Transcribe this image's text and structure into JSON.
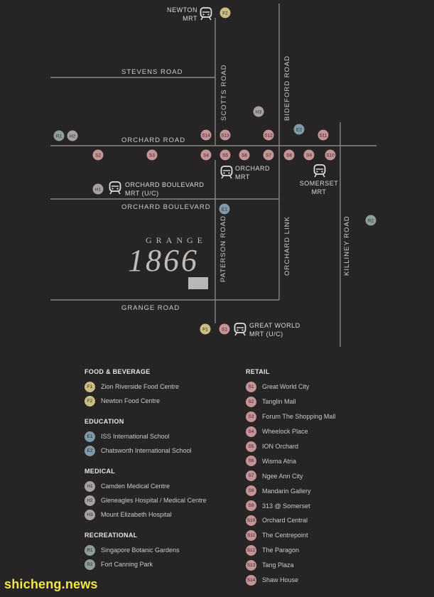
{
  "colors": {
    "background": "#262425",
    "road": "#8a8684",
    "food": "#c9bf84",
    "education": "#7f9aa8",
    "medical": "#a7a2a0",
    "recreational": "#8f9e97",
    "retail": "#c69496",
    "site": "#b9b7b6"
  },
  "map": {
    "roads": {
      "stevens": "STEVENS ROAD",
      "orchard": "ORCHARD ROAD",
      "orchard_boulevard": "ORCHARD BOULEVARD",
      "grange": "GRANGE ROAD",
      "scotts": "SCOTTS ROAD",
      "bideford": "BIDEFORD ROAD",
      "paterson": "PATERSON ROAD",
      "orchard_link": "ORCHARD LINK",
      "killiney": "KILLINEY ROAD"
    },
    "mrt": {
      "newton": [
        "NEWTON",
        "MRT"
      ],
      "orchard": [
        "ORCHARD",
        "MRT"
      ],
      "orchard_boulevard": [
        "ORCHARD BOULEVARD",
        "MRT (U/C)"
      ],
      "somerset": [
        "SOMERSET",
        "MRT"
      ],
      "great_world": [
        "GREAT WORLD",
        "MRT (U/C)"
      ]
    },
    "project": {
      "word": "GRANGE",
      "year": "1866"
    },
    "markers": [
      {
        "code": "F2",
        "cat": "food"
      },
      {
        "code": "H3",
        "cat": "medical"
      },
      {
        "code": "E2",
        "cat": "education"
      },
      {
        "code": "R1",
        "cat": "recreational"
      },
      {
        "code": "H2",
        "cat": "medical"
      },
      {
        "code": "S14",
        "cat": "retail"
      },
      {
        "code": "S13",
        "cat": "retail"
      },
      {
        "code": "S12",
        "cat": "retail"
      },
      {
        "code": "S11",
        "cat": "retail"
      },
      {
        "code": "S2",
        "cat": "retail"
      },
      {
        "code": "S3",
        "cat": "retail"
      },
      {
        "code": "S4",
        "cat": "retail"
      },
      {
        "code": "S5",
        "cat": "retail"
      },
      {
        "code": "S6",
        "cat": "retail"
      },
      {
        "code": "S7",
        "cat": "retail"
      },
      {
        "code": "S8",
        "cat": "retail"
      },
      {
        "code": "S9",
        "cat": "retail"
      },
      {
        "code": "S10",
        "cat": "retail"
      },
      {
        "code": "H1",
        "cat": "medical"
      },
      {
        "code": "E1",
        "cat": "education"
      },
      {
        "code": "R2",
        "cat": "recreational"
      },
      {
        "code": "F1",
        "cat": "food"
      },
      {
        "code": "S1",
        "cat": "retail"
      }
    ]
  },
  "legend": {
    "food": {
      "title": "FOOD & BEVERAGE",
      "items": [
        {
          "code": "F1",
          "label": "Zion Riverside Food Centre"
        },
        {
          "code": "F2",
          "label": "Newton Food Centre"
        }
      ]
    },
    "education": {
      "title": "EDUCATION",
      "items": [
        {
          "code": "E1",
          "label": "ISS International School"
        },
        {
          "code": "E2",
          "label": "Chatsworth International School"
        }
      ]
    },
    "medical": {
      "title": "MEDICAL",
      "items": [
        {
          "code": "H1",
          "label": "Camden Medical Centre"
        },
        {
          "code": "H2",
          "label": "Gleneagles Hospital / Medical Centre"
        },
        {
          "code": "H3",
          "label": "Mount Elizabeth Hospital"
        }
      ]
    },
    "recreational": {
      "title": "RECREATIONAL",
      "items": [
        {
          "code": "R1",
          "label": "Singapore Botanic Gardens"
        },
        {
          "code": "R2",
          "label": "Fort Canning Park"
        }
      ]
    },
    "retail": {
      "title": "RETAIL",
      "items": [
        {
          "code": "S1",
          "label": "Great World City"
        },
        {
          "code": "S2",
          "label": "Tanglin Mall"
        },
        {
          "code": "S3",
          "label": "Forum The Shopping Mall"
        },
        {
          "code": "S4",
          "label": "Wheelock Place"
        },
        {
          "code": "S5",
          "label": "ION Orchard"
        },
        {
          "code": "S6",
          "label": "Wisma Atria"
        },
        {
          "code": "S7",
          "label": "Ngee Ann City"
        },
        {
          "code": "S8",
          "label": "Mandarin Gallery"
        },
        {
          "code": "S9",
          "label": "313 @ Somerset"
        },
        {
          "code": "S10",
          "label": "Orchard Central"
        },
        {
          "code": "S11",
          "label": "The Centrepoint"
        },
        {
          "code": "S12",
          "label": "The Paragon"
        },
        {
          "code": "S13",
          "label": "Tang Plaza"
        },
        {
          "code": "S14",
          "label": "Shaw House"
        }
      ]
    }
  },
  "watermark": "shicheng.news"
}
